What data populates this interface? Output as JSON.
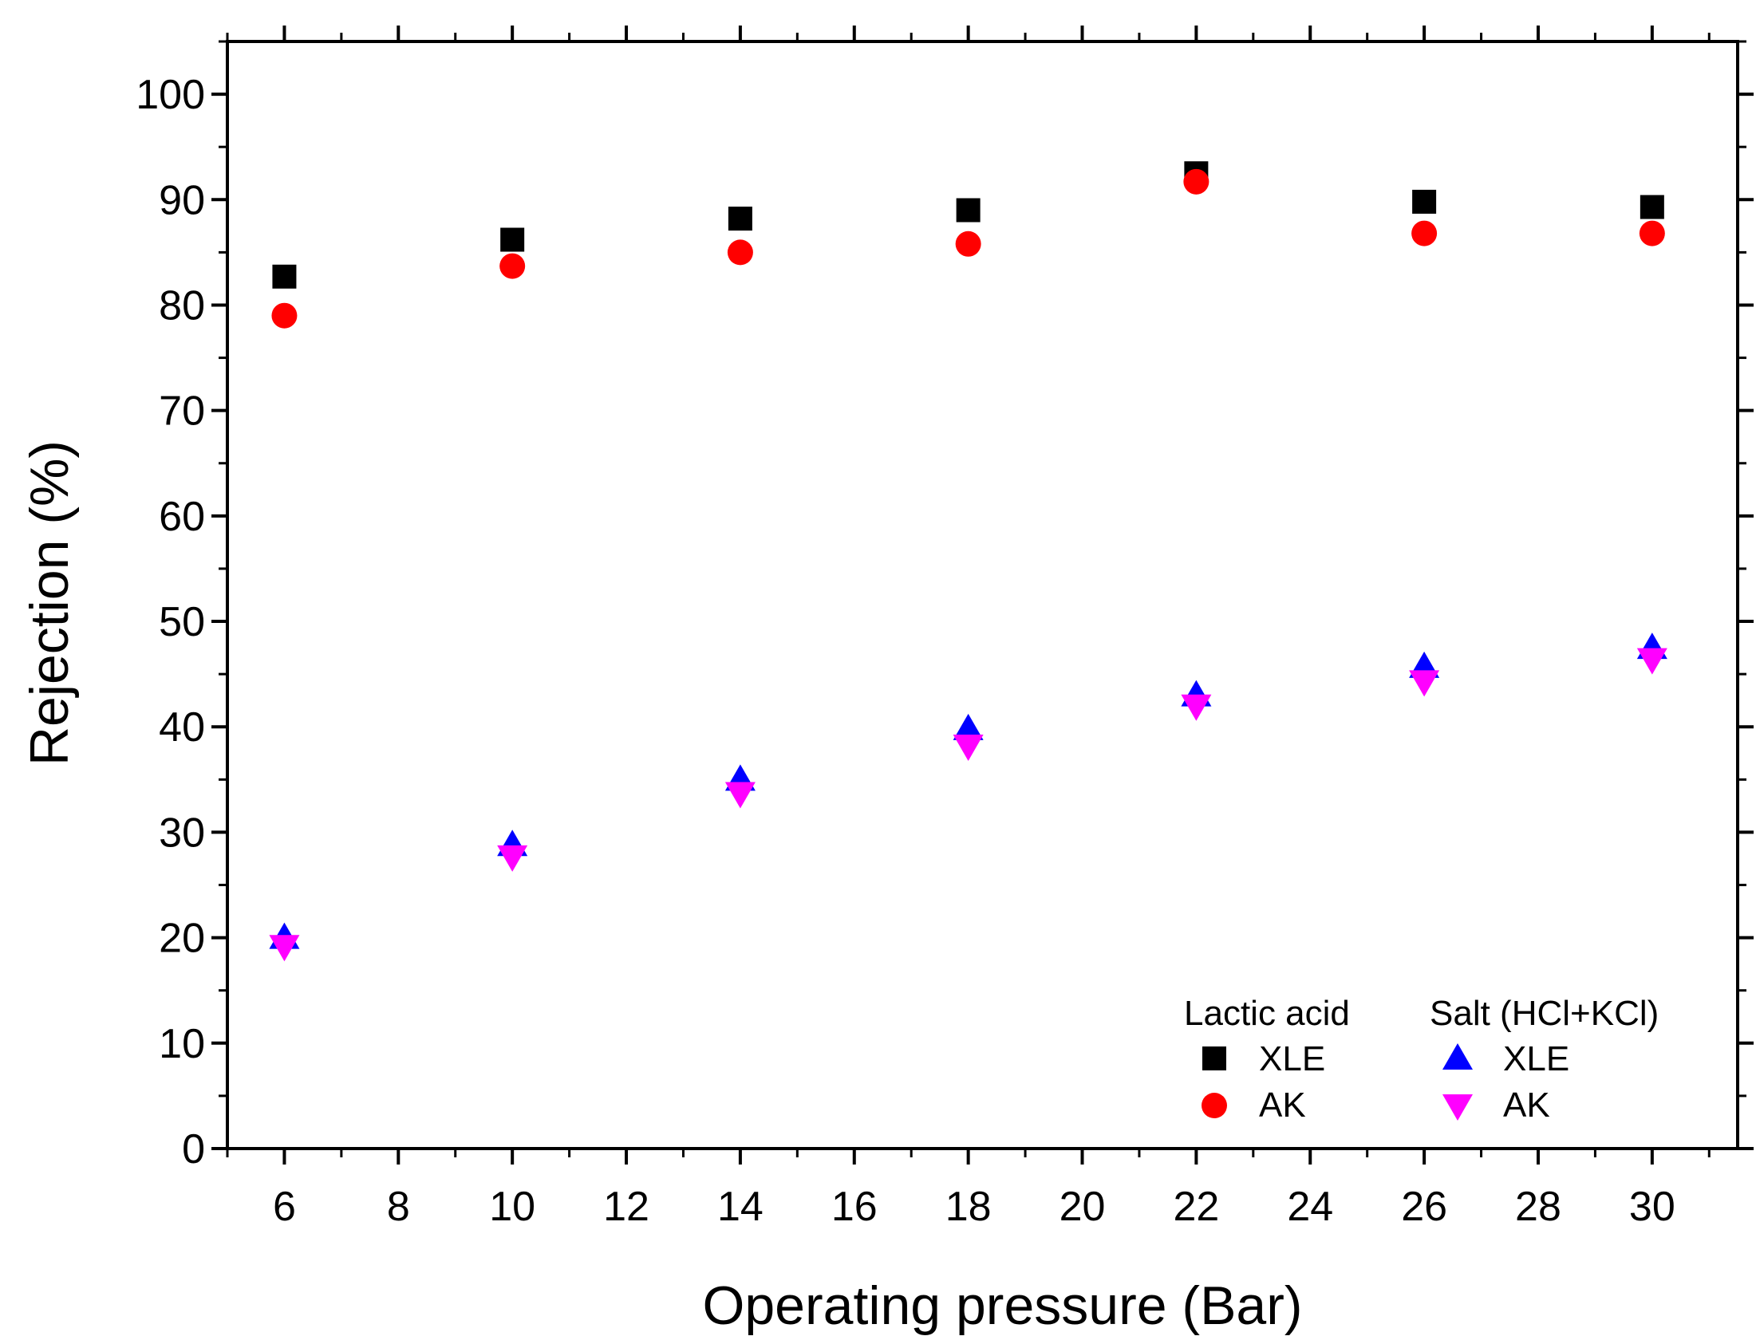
{
  "chart_data": {
    "type": "scatter",
    "title": "",
    "xlabel": "Operating pressure (Bar)",
    "ylabel": "Rejection (%)",
    "xlim": [
      5,
      31.5
    ],
    "ylim": [
      0,
      105
    ],
    "x_ticks": [
      6,
      8,
      10,
      12,
      14,
      16,
      18,
      20,
      22,
      24,
      26,
      28,
      30
    ],
    "x_tick_labels": [
      "6",
      "8",
      "10",
      "12",
      "14",
      "16",
      "18",
      "20",
      "22",
      "24",
      "26",
      "28",
      "30"
    ],
    "y_ticks": [
      0,
      10,
      20,
      30,
      40,
      50,
      60,
      70,
      80,
      90,
      100
    ],
    "y_tick_labels": [
      "0",
      "10",
      "20",
      "30",
      "40",
      "50",
      "60",
      "70",
      "80",
      "90",
      "100"
    ],
    "grid": false,
    "legend_position": "bottom-right",
    "legend_groups": [
      {
        "title": "Lactic acid",
        "entries": [
          "XLE",
          "AK"
        ]
      },
      {
        "title": "Salt (HCl+KCl)",
        "entries": [
          "XLE",
          "AK"
        ]
      }
    ],
    "x": [
      6,
      10,
      14,
      18,
      22,
      26,
      30
    ],
    "series": [
      {
        "name": "XLE",
        "group": "Lactic acid",
        "marker": "square",
        "color": "#000000",
        "values": [
          82.7,
          86.2,
          88.2,
          89.0,
          92.5,
          89.8,
          89.3
        ]
      },
      {
        "name": "AK",
        "group": "Lactic acid",
        "marker": "circle",
        "color": "#ff0000",
        "values": [
          79.0,
          83.7,
          85.0,
          85.8,
          91.7,
          86.8,
          86.8
        ]
      },
      {
        "name": "XLE",
        "group": "Salt (HCl+KCl)",
        "marker": "triangle-up",
        "color": "#0000ff",
        "values": [
          20.0,
          28.8,
          35.0,
          39.8,
          43.0,
          45.7,
          47.5
        ]
      },
      {
        "name": "AK",
        "group": "Salt (HCl+KCl)",
        "marker": "triangle-down",
        "color": "#ff00ff",
        "values": [
          19.2,
          27.7,
          33.7,
          38.2,
          42.0,
          44.3,
          46.4
        ]
      }
    ]
  }
}
